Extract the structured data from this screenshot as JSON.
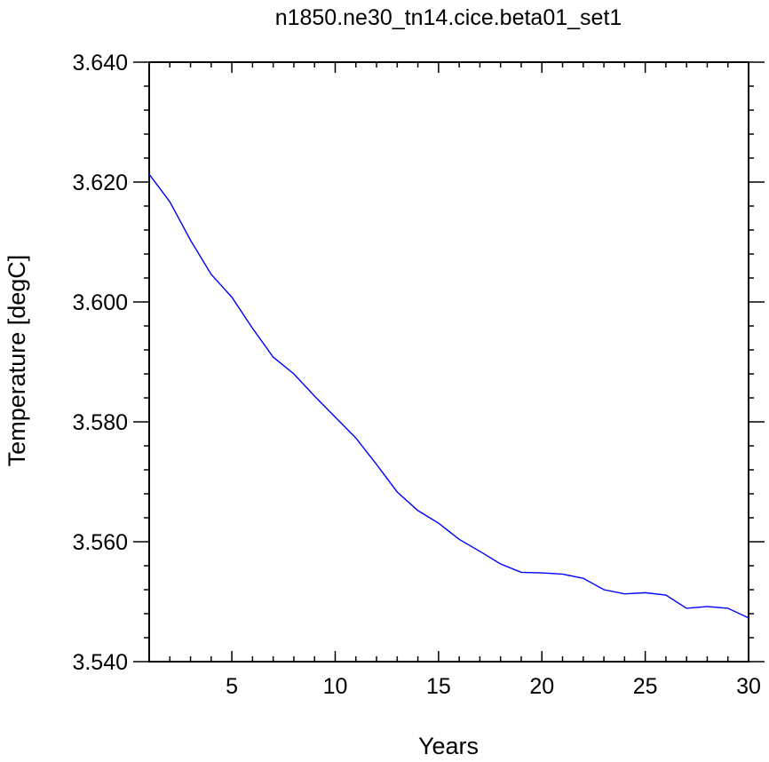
{
  "chart_data": {
    "type": "line",
    "title": "n1850.ne30_tn14.cice.beta01_set1",
    "xlabel": "Years",
    "ylabel": "Temperature [degC]",
    "xlim": [
      1,
      30
    ],
    "ylim": [
      3.54,
      3.64
    ],
    "xticks": [
      5,
      10,
      15,
      20,
      25,
      30
    ],
    "xtick_labels": [
      "5",
      "10",
      "15",
      "20",
      "25",
      "30"
    ],
    "yticks": [
      3.54,
      3.56,
      3.58,
      3.6,
      3.62,
      3.64
    ],
    "ytick_labels": [
      "3.540",
      "3.560",
      "3.580",
      "3.600",
      "3.620",
      "3.640"
    ],
    "grid": false,
    "line_color": "#0000ff",
    "series": [
      {
        "x": [
          1,
          2,
          3,
          4,
          5,
          6,
          7,
          8,
          9,
          10,
          11,
          12,
          13,
          14,
          15,
          16,
          17,
          18,
          19,
          20,
          21,
          22,
          23,
          24,
          25,
          26,
          27,
          28,
          29,
          30
        ],
        "values": [
          3.6213,
          3.6167,
          3.6103,
          3.6046,
          3.6008,
          3.5956,
          3.5908,
          3.588,
          3.5843,
          3.5808,
          3.5773,
          3.5729,
          3.5683,
          3.5652,
          3.5631,
          3.5604,
          3.5584,
          3.5563,
          3.5549,
          3.5548,
          3.5546,
          3.5539,
          3.552,
          3.5513,
          3.5515,
          3.5511,
          3.5489,
          3.5492,
          3.5489,
          3.5473
        ]
      }
    ]
  }
}
